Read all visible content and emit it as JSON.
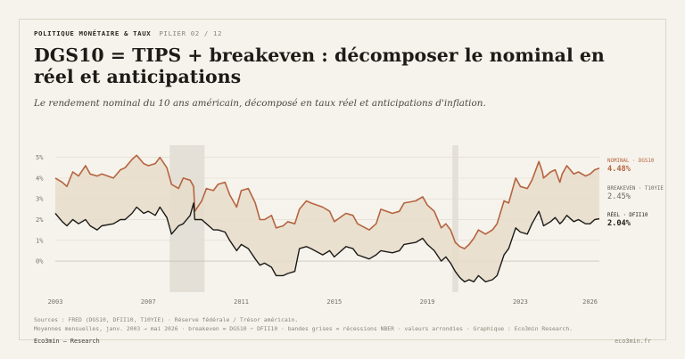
{
  "header": {
    "kicker": "POLITIQUE MONÉTAIRE & TAUX",
    "kicker_sub": "PILIER 02 / 12",
    "title": "DGS10 = TIPS + breakeven : décomposer le nominal en réel et anticipations",
    "subtitle": "Le rendement nominal du 10 ans américain, décomposé en taux réel et anticipations d'inflation."
  },
  "footer": {
    "source": "Sources : FRED (DGS10, DFII10, T10YIE) · Réserve fédérale / Trésor américain.",
    "note": "Moyennes mensuelles, janv. 2003 → mai 2026 · breakeven = DGS10 − DFII10 · bandes grises = récessions NBER · valeurs arrondies · Graphique : Eco3min Research.",
    "brand": "Eco3min — Research",
    "site": "eco3min.fr"
  },
  "colors": {
    "nominal": "#b5643f",
    "real": "#1c1b18",
    "breakeven_fill": "#e8dccb",
    "recession": "#e4e0d7",
    "grid": "#e3ddd1",
    "zero": "#bdb7ab",
    "axis_text": "#77716a"
  },
  "chart_data": {
    "type": "line",
    "x_unit": "year",
    "xlim": [
      2003,
      2026.4
    ],
    "ylim": [
      -1.2,
      5.2
    ],
    "y_ticks": [
      0,
      1,
      2,
      3,
      4,
      5
    ],
    "y_tick_labels": [
      "0%",
      "1%",
      "2%",
      "3%",
      "4%",
      "5%"
    ],
    "x_ticks": [
      2003,
      2007,
      2011,
      2015,
      2019,
      2023,
      2026
    ],
    "x_tick_labels": [
      "2003",
      "2007",
      "2011",
      "2015",
      "2019",
      "2023",
      "2026"
    ],
    "recessions": [
      [
        2007.92,
        2009.42
      ],
      [
        2020.08,
        2020.33
      ]
    ],
    "fill_between": "breakeven",
    "series": [
      {
        "key": "nominal",
        "legend_label": "NOMINAL · DGS10",
        "last_value_label": "4.48%",
        "x": [
          2003.0,
          2003.3,
          2003.5,
          2003.75,
          2004.0,
          2004.3,
          2004.5,
          2004.8,
          2005.0,
          2005.5,
          2005.8,
          2006.0,
          2006.3,
          2006.5,
          2006.8,
          2007.0,
          2007.3,
          2007.5,
          2007.8,
          2008.0,
          2008.3,
          2008.5,
          2008.8,
          2008.95,
          2009.0,
          2009.3,
          2009.5,
          2009.8,
          2010.0,
          2010.3,
          2010.5,
          2010.8,
          2011.0,
          2011.3,
          2011.6,
          2011.8,
          2012.0,
          2012.3,
          2012.5,
          2012.8,
          2013.0,
          2013.3,
          2013.5,
          2013.8,
          2014.0,
          2014.5,
          2014.8,
          2015.0,
          2015.5,
          2015.8,
          2016.0,
          2016.5,
          2016.8,
          2017.0,
          2017.5,
          2017.8,
          2018.0,
          2018.5,
          2018.8,
          2019.0,
          2019.3,
          2019.6,
          2019.8,
          2020.0,
          2020.2,
          2020.4,
          2020.6,
          2020.8,
          2021.0,
          2021.2,
          2021.5,
          2021.8,
          2022.0,
          2022.3,
          2022.5,
          2022.8,
          2023.0,
          2023.3,
          2023.5,
          2023.8,
          2023.95,
          2024.0,
          2024.3,
          2024.5,
          2024.7,
          2024.8,
          2025.0,
          2025.3,
          2025.5,
          2025.8,
          2026.0,
          2026.2,
          2026.4
        ],
        "y": [
          4.0,
          3.8,
          3.6,
          4.3,
          4.1,
          4.6,
          4.2,
          4.1,
          4.2,
          4.0,
          4.4,
          4.5,
          4.9,
          5.1,
          4.7,
          4.6,
          4.7,
          5.0,
          4.5,
          3.7,
          3.5,
          4.0,
          3.9,
          3.6,
          2.4,
          2.9,
          3.5,
          3.4,
          3.7,
          3.8,
          3.2,
          2.6,
          3.4,
          3.5,
          2.8,
          2.0,
          2.0,
          2.2,
          1.6,
          1.7,
          1.9,
          1.8,
          2.5,
          2.9,
          2.8,
          2.6,
          2.4,
          1.9,
          2.3,
          2.2,
          1.8,
          1.5,
          1.8,
          2.5,
          2.3,
          2.4,
          2.8,
          2.9,
          3.1,
          2.7,
          2.4,
          1.6,
          1.8,
          1.5,
          0.9,
          0.7,
          0.6,
          0.8,
          1.1,
          1.5,
          1.3,
          1.5,
          1.8,
          2.9,
          2.8,
          4.0,
          3.6,
          3.5,
          3.9,
          4.8,
          4.3,
          4.0,
          4.3,
          4.4,
          3.8,
          4.2,
          4.6,
          4.2,
          4.3,
          4.1,
          4.2,
          4.4,
          4.48
        ]
      },
      {
        "key": "breakeven",
        "legend_label": "BREAKEVEN · T10YIE",
        "last_value_label": "2.45%"
      },
      {
        "key": "real",
        "legend_label": "RÉEL · DFII10",
        "last_value_label": "2.04%",
        "x": [
          2003.0,
          2003.3,
          2003.5,
          2003.75,
          2004.0,
          2004.3,
          2004.5,
          2004.8,
          2005.0,
          2005.5,
          2005.8,
          2006.0,
          2006.3,
          2006.5,
          2006.8,
          2007.0,
          2007.3,
          2007.5,
          2007.8,
          2008.0,
          2008.3,
          2008.5,
          2008.8,
          2008.95,
          2009.0,
          2009.3,
          2009.5,
          2009.8,
          2010.0,
          2010.3,
          2010.5,
          2010.8,
          2011.0,
          2011.3,
          2011.6,
          2011.8,
          2012.0,
          2012.3,
          2012.5,
          2012.8,
          2013.0,
          2013.3,
          2013.5,
          2013.8,
          2014.0,
          2014.5,
          2014.8,
          2015.0,
          2015.5,
          2015.8,
          2016.0,
          2016.5,
          2016.8,
          2017.0,
          2017.5,
          2017.8,
          2018.0,
          2018.5,
          2018.8,
          2019.0,
          2019.3,
          2019.6,
          2019.8,
          2020.0,
          2020.2,
          2020.4,
          2020.6,
          2020.8,
          2021.0,
          2021.2,
          2021.5,
          2021.8,
          2022.0,
          2022.3,
          2022.5,
          2022.8,
          2023.0,
          2023.3,
          2023.5,
          2023.8,
          2023.95,
          2024.0,
          2024.3,
          2024.5,
          2024.7,
          2024.8,
          2025.0,
          2025.3,
          2025.5,
          2025.8,
          2026.0,
          2026.2,
          2026.4
        ],
        "y": [
          2.3,
          1.9,
          1.7,
          2.0,
          1.8,
          2.0,
          1.7,
          1.5,
          1.7,
          1.8,
          2.0,
          2.0,
          2.3,
          2.6,
          2.3,
          2.4,
          2.2,
          2.6,
          2.1,
          1.3,
          1.7,
          1.8,
          2.2,
          2.8,
          2.0,
          2.0,
          1.8,
          1.5,
          1.5,
          1.4,
          1.0,
          0.5,
          0.8,
          0.6,
          0.1,
          -0.2,
          -0.1,
          -0.3,
          -0.7,
          -0.7,
          -0.6,
          -0.5,
          0.6,
          0.7,
          0.6,
          0.3,
          0.5,
          0.2,
          0.7,
          0.6,
          0.3,
          0.1,
          0.3,
          0.5,
          0.4,
          0.5,
          0.8,
          0.9,
          1.1,
          0.8,
          0.5,
          0.0,
          0.2,
          -0.1,
          -0.5,
          -0.8,
          -1.0,
          -0.9,
          -1.0,
          -0.7,
          -1.0,
          -0.9,
          -0.7,
          0.3,
          0.6,
          1.6,
          1.4,
          1.3,
          1.8,
          2.4,
          1.9,
          1.7,
          1.9,
          2.1,
          1.8,
          1.9,
          2.2,
          1.9,
          2.0,
          1.8,
          1.8,
          2.0,
          2.04
        ]
      }
    ]
  }
}
